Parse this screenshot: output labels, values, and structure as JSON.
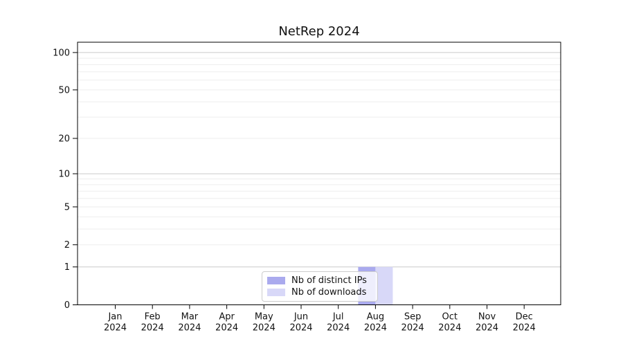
{
  "chart_data": {
    "type": "bar",
    "title": "NetRep 2024",
    "year": "2024",
    "categories": [
      "Jan",
      "Feb",
      "Mar",
      "Apr",
      "May",
      "Jun",
      "Jul",
      "Aug",
      "Sep",
      "Oct",
      "Nov",
      "Dec"
    ],
    "series": [
      {
        "name": "Nb of distinct IPs",
        "color": "#aaaaee",
        "values": [
          0,
          0,
          0,
          0,
          0,
          0,
          0,
          1,
          0,
          0,
          0,
          0
        ]
      },
      {
        "name": "Nb of downloads",
        "color": "#d8d8f8",
        "values": [
          0,
          0,
          0,
          0,
          0,
          0,
          0,
          1,
          0,
          0,
          0,
          0
        ]
      }
    ],
    "yticks": [
      100,
      50,
      20,
      10,
      5,
      2,
      1,
      0
    ],
    "gridlines": {
      "major": [
        1,
        10,
        100
      ],
      "minor": [
        2,
        3,
        4,
        5,
        6,
        7,
        8,
        9,
        20,
        30,
        40,
        50,
        60,
        70,
        80,
        90
      ]
    },
    "yscale": "log1p",
    "ylim": [
      0,
      120
    ],
    "legend_position": "lower center",
    "colors": {
      "axis": "#000000",
      "text": "#111111",
      "grid_major": "#c9c9c9",
      "grid_minor": "#ededed",
      "background": "#ffffff"
    }
  }
}
